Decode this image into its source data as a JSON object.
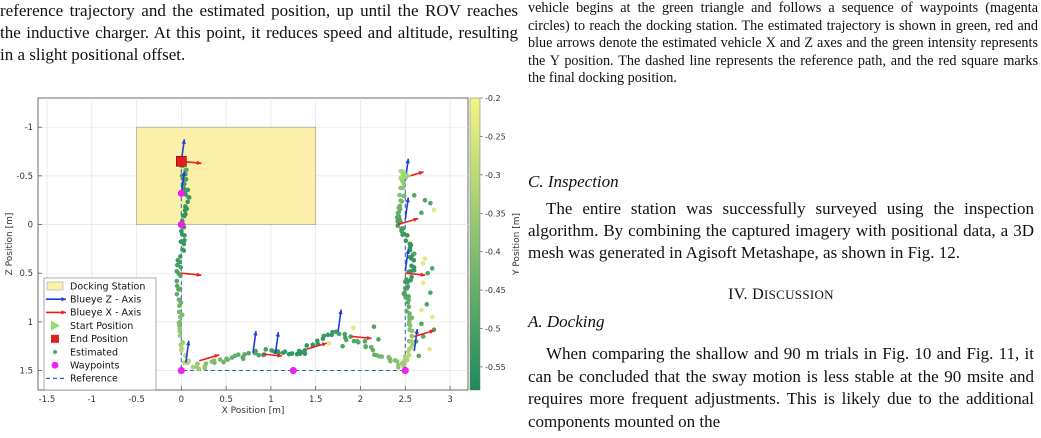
{
  "left_paragraph": "reference trajectory and the estimated position, up until the ROV reaches the inductive charger. At this point, it reduces speed and altitude, resulting in a slight positional offset.",
  "caption": "vehicle begins at the green triangle and follows a sequence of waypoints (magenta circles) to reach the docking station. The estimated trajectory is shown in green, red and blue arrows denote the estimated vehicle X and Z axes and the green intensity represents the Y position. The dashed line represents the reference path, and the red square marks the final docking position.",
  "section_c": {
    "title": "C. Inspection",
    "text": "The entire station was successfully surveyed using the inspection algorithm. By combining the captured imagery with positional data, a 3D mesh was generated in Agisoft Metashape, as shown in Fig. 12."
  },
  "section_iv": {
    "numeral": "IV. D",
    "rest": "ISCUSSION"
  },
  "section_a": {
    "title": "A. Docking",
    "text": "When comparing the shallow and 90 m trials in Fig. 10 and Fig. 11, it can be concluded that the sway motion is less stable at the 90 msite and requires more frequent adjustments. This is likely due to the additional components mounted on the"
  },
  "chart_data": {
    "type": "scatter",
    "xlabel": "X Position [m]",
    "ylabel": "Z Position [m]",
    "xlim": [
      -1.6,
      3.2
    ],
    "ylim": [
      1.7,
      -1.3
    ],
    "y_inverted": true,
    "xticks": [
      "-1.5",
      "-1",
      "-0.5",
      "0",
      "0.5",
      "1",
      "1.5",
      "2",
      "2.5",
      "3"
    ],
    "xtick_values": [
      -1.5,
      -1,
      -0.5,
      0,
      0.5,
      1,
      1.5,
      2,
      2.5,
      3
    ],
    "yticks": [
      "-1",
      "-0.5",
      "0",
      "0.5",
      "1",
      "1.5"
    ],
    "ytick_values": [
      -1,
      -0.5,
      0,
      0.5,
      1,
      1.5
    ],
    "grid": true,
    "legend_position": "bottom-left",
    "legend": [
      {
        "label": "Docking Station",
        "kind": "rect",
        "color": "#fbefaa"
      },
      {
        "label": "Blueye Z - Axis",
        "kind": "arrow",
        "color": "#1f3fd8"
      },
      {
        "label": "Blueye X - Axis",
        "kind": "arrow",
        "color": "#e8221c"
      },
      {
        "label": "Start Position",
        "kind": "triangle",
        "color": "#90e070"
      },
      {
        "label": "End Position",
        "kind": "square",
        "color": "#e02020"
      },
      {
        "label": "Estimated",
        "kind": "dot",
        "color": "#4fa860"
      },
      {
        "label": "Waypoints",
        "kind": "circle",
        "color": "#ee22ee"
      },
      {
        "label": "Reference",
        "kind": "dashed",
        "color": "#2a6ab8"
      }
    ],
    "docking_station": {
      "x0": -0.5,
      "x1": 1.5,
      "z0": -1.0,
      "z1": 0.0
    },
    "waypoints": [
      [
        2.5,
        -0.5
      ],
      [
        2.5,
        1.5
      ],
      [
        1.25,
        1.5
      ],
      [
        0,
        1.5
      ],
      [
        0,
        0
      ],
      [
        0,
        -0.32
      ],
      [
        0,
        -0.65
      ]
    ],
    "reference_path": [
      [
        2.5,
        -0.5
      ],
      [
        2.5,
        1.5
      ],
      [
        1.25,
        1.5
      ],
      [
        0,
        1.5
      ],
      [
        0,
        0
      ],
      [
        0,
        -0.32
      ],
      [
        0,
        -0.65
      ]
    ],
    "start_position": [
      2.5,
      -0.5
    ],
    "end_position": [
      0,
      -0.65
    ],
    "colorbar": {
      "label": "Y Position [m]",
      "min": -0.58,
      "max": -0.2,
      "ticks": [
        "-0.2",
        "-0.25",
        "-0.3",
        "-0.35",
        "-0.4",
        "-0.45",
        "-0.5",
        "-0.55"
      ],
      "tick_values": [
        -0.2,
        -0.25,
        -0.3,
        -0.35,
        -0.4,
        -0.45,
        -0.5,
        -0.55
      ],
      "color_top": "#f5f586",
      "color_bottom": "#1d8a5c"
    },
    "estimated_path": [
      [
        2.47,
        -0.55
      ],
      [
        2.48,
        -0.45
      ],
      [
        2.46,
        -0.3
      ],
      [
        2.44,
        -0.15
      ],
      [
        2.43,
        -0.05
      ],
      [
        2.45,
        0.05
      ],
      [
        2.52,
        0.15
      ],
      [
        2.57,
        0.27
      ],
      [
        2.6,
        0.42
      ],
      [
        2.55,
        0.55
      ],
      [
        2.5,
        0.68
      ],
      [
        2.53,
        0.8
      ],
      [
        2.56,
        0.95
      ],
      [
        2.58,
        1.1
      ],
      [
        2.55,
        1.25
      ],
      [
        2.5,
        1.38
      ],
      [
        2.45,
        1.45
      ],
      [
        2.3,
        1.38
      ],
      [
        2.1,
        1.28
      ],
      [
        1.9,
        1.18
      ],
      [
        1.7,
        1.12
      ],
      [
        1.5,
        1.2
      ],
      [
        1.35,
        1.32
      ],
      [
        1.2,
        1.32
      ],
      [
        1.0,
        1.3
      ],
      [
        0.8,
        1.33
      ],
      [
        0.6,
        1.37
      ],
      [
        0.4,
        1.42
      ],
      [
        0.2,
        1.46
      ],
      [
        0.05,
        1.42
      ],
      [
        0.02,
        1.25
      ],
      [
        0.0,
        1.05
      ],
      [
        -0.02,
        0.85
      ],
      [
        -0.03,
        0.65
      ],
      [
        -0.02,
        0.45
      ],
      [
        0.0,
        0.25
      ],
      [
        0.02,
        0.05
      ],
      [
        0.05,
        -0.12
      ],
      [
        0.07,
        -0.28
      ],
      [
        0.05,
        -0.42
      ],
      [
        0.03,
        -0.55
      ],
      [
        0.0,
        -0.65
      ]
    ],
    "extra_points": [
      [
        2.72,
        0.35
      ],
      [
        2.75,
        0.5
      ],
      [
        2.8,
        0.45
      ],
      [
        2.7,
        0.6
      ],
      [
        2.78,
        0.7
      ],
      [
        2.74,
        0.82
      ],
      [
        2.8,
        0.95
      ],
      [
        2.68,
        1.02
      ],
      [
        2.7,
        1.15
      ],
      [
        2.77,
        1.28
      ],
      [
        2.65,
        1.35
      ],
      [
        2.6,
        0.3
      ],
      [
        2.68,
        0.88
      ],
      [
        2.82,
        1.08
      ],
      [
        2.62,
        1.2
      ],
      [
        2.7,
        0.4
      ],
      [
        2.15,
        1.05
      ],
      [
        2.05,
        1.2
      ],
      [
        1.92,
        1.06
      ],
      [
        1.8,
        1.25
      ],
      [
        2.2,
        1.18
      ],
      [
        1.65,
        1.22
      ],
      [
        2.6,
        -0.3
      ],
      [
        2.72,
        -0.25
      ],
      [
        2.82,
        -0.15
      ],
      [
        2.68,
        -0.12
      ],
      [
        2.78,
        -0.22
      ]
    ],
    "z_axis_arrows": [
      [
        0,
        -0.65
      ],
      [
        2.5,
        -0.45
      ],
      [
        2.5,
        0.48
      ],
      [
        2.6,
        1.3
      ],
      [
        1.75,
        1.1
      ],
      [
        1.05,
        1.33
      ],
      [
        0.8,
        1.32
      ],
      [
        0.05,
        1.42
      ],
      [
        0,
        -0.32
      ],
      [
        2.5,
        -0.05
      ]
    ],
    "x_axis_arrows": [
      [
        0,
        -0.65
      ],
      [
        2.48,
        -0.48
      ],
      [
        2.5,
        0.5
      ],
      [
        2.6,
        1.15
      ],
      [
        1.9,
        1.15
      ],
      [
        1.4,
        1.28
      ],
      [
        0.9,
        1.33
      ],
      [
        0.2,
        1.4
      ],
      [
        0,
        0.5
      ],
      [
        2.42,
        0.0
      ]
    ]
  }
}
